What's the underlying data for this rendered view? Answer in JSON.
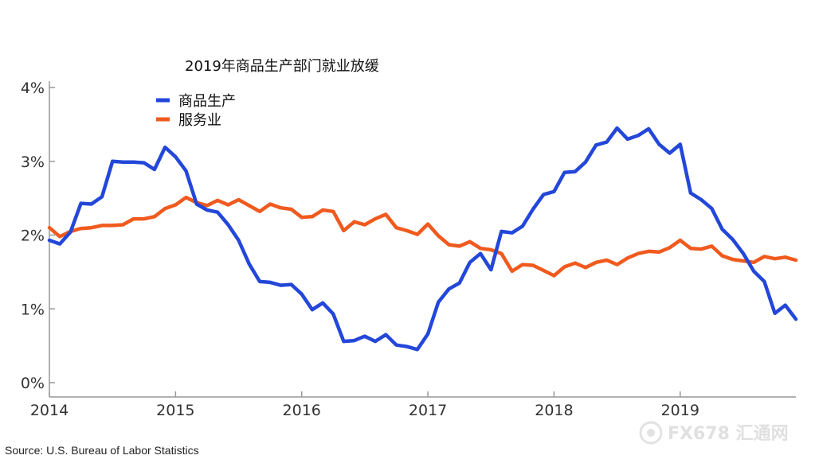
{
  "chart_data": {
    "type": "line",
    "title": "2019年商品生产部门就业放缓",
    "xlabel": "",
    "ylabel": "",
    "xlim": [
      2014.0,
      2019.917
    ],
    "ylim": [
      0,
      4
    ],
    "x_ticks": [
      "2014",
      "2015",
      "2016",
      "2017",
      "2018",
      "2019"
    ],
    "y_ticks": [
      "0%",
      "1%",
      "2%",
      "3%",
      "4%"
    ],
    "legend_position": "top-left",
    "grid": false,
    "series": [
      {
        "name": "商品生产",
        "color": "#2347d9",
        "x": [
          2014.0,
          2014.083,
          2014.167,
          2014.25,
          2014.333,
          2014.417,
          2014.5,
          2014.583,
          2014.667,
          2014.75,
          2014.833,
          2014.917,
          2015.0,
          2015.083,
          2015.167,
          2015.25,
          2015.333,
          2015.417,
          2015.5,
          2015.583,
          2015.667,
          2015.75,
          2015.833,
          2015.917,
          2016.0,
          2016.083,
          2016.167,
          2016.25,
          2016.333,
          2016.417,
          2016.5,
          2016.583,
          2016.667,
          2016.75,
          2016.833,
          2016.917,
          2017.0,
          2017.083,
          2017.167,
          2017.25,
          2017.333,
          2017.417,
          2017.5,
          2017.583,
          2017.667,
          2017.75,
          2017.833,
          2017.917,
          2018.0,
          2018.083,
          2018.167,
          2018.25,
          2018.333,
          2018.417,
          2018.5,
          2018.583,
          2018.667,
          2018.75,
          2018.833,
          2018.917,
          2019.0,
          2019.083,
          2019.167,
          2019.25,
          2019.333,
          2019.417,
          2019.5,
          2019.583,
          2019.667,
          2019.75,
          2019.833,
          2019.917
        ],
        "values": [
          1.93,
          1.88,
          2.04,
          2.43,
          2.42,
          2.52,
          3.0,
          2.99,
          2.99,
          2.98,
          2.89,
          3.19,
          3.06,
          2.87,
          2.42,
          2.34,
          2.31,
          2.14,
          1.93,
          1.61,
          1.37,
          1.36,
          1.32,
          1.33,
          1.2,
          0.99,
          1.08,
          0.93,
          0.56,
          0.57,
          0.63,
          0.56,
          0.65,
          0.51,
          0.49,
          0.45,
          0.66,
          1.09,
          1.27,
          1.35,
          1.63,
          1.75,
          1.53,
          2.05,
          2.03,
          2.12,
          2.35,
          2.55,
          2.59,
          2.85,
          2.86,
          2.99,
          3.22,
          3.26,
          3.45,
          3.3,
          3.35,
          3.44,
          3.23,
          3.11,
          3.23,
          2.57,
          2.48,
          2.36,
          2.08,
          1.94,
          1.75,
          1.51,
          1.37,
          0.94,
          1.05,
          0.86
        ]
      },
      {
        "name": "服务业",
        "color": "#f05a1e",
        "x": [
          2014.0,
          2014.083,
          2014.167,
          2014.25,
          2014.333,
          2014.417,
          2014.5,
          2014.583,
          2014.667,
          2014.75,
          2014.833,
          2014.917,
          2015.0,
          2015.083,
          2015.167,
          2015.25,
          2015.333,
          2015.417,
          2015.5,
          2015.583,
          2015.667,
          2015.75,
          2015.833,
          2015.917,
          2016.0,
          2016.083,
          2016.167,
          2016.25,
          2016.333,
          2016.417,
          2016.5,
          2016.583,
          2016.667,
          2016.75,
          2016.833,
          2016.917,
          2017.0,
          2017.083,
          2017.167,
          2017.25,
          2017.333,
          2017.417,
          2017.5,
          2017.583,
          2017.667,
          2017.75,
          2017.833,
          2017.917,
          2018.0,
          2018.083,
          2018.167,
          2018.25,
          2018.333,
          2018.417,
          2018.5,
          2018.583,
          2018.667,
          2018.75,
          2018.833,
          2018.917,
          2019.0,
          2019.083,
          2019.167,
          2019.25,
          2019.333,
          2019.417,
          2019.5,
          2019.583,
          2019.667,
          2019.75,
          2019.833,
          2019.917
        ],
        "values": [
          2.1,
          1.98,
          2.05,
          2.09,
          2.1,
          2.13,
          2.13,
          2.14,
          2.22,
          2.22,
          2.25,
          2.36,
          2.41,
          2.51,
          2.44,
          2.4,
          2.47,
          2.41,
          2.48,
          2.4,
          2.32,
          2.42,
          2.37,
          2.35,
          2.24,
          2.25,
          2.34,
          2.32,
          2.06,
          2.18,
          2.14,
          2.22,
          2.28,
          2.1,
          2.06,
          2.01,
          2.15,
          1.99,
          1.87,
          1.85,
          1.91,
          1.82,
          1.8,
          1.75,
          1.51,
          1.6,
          1.59,
          1.52,
          1.45,
          1.57,
          1.62,
          1.56,
          1.63,
          1.66,
          1.6,
          1.69,
          1.75,
          1.78,
          1.77,
          1.83,
          1.93,
          1.82,
          1.81,
          1.85,
          1.72,
          1.67,
          1.65,
          1.63,
          1.71,
          1.68,
          1.7,
          1.66
        ]
      }
    ]
  },
  "footer": {
    "source": "Source: U.S. Bureau of Labor Statistics",
    "watermark": "FX678 汇通网"
  }
}
